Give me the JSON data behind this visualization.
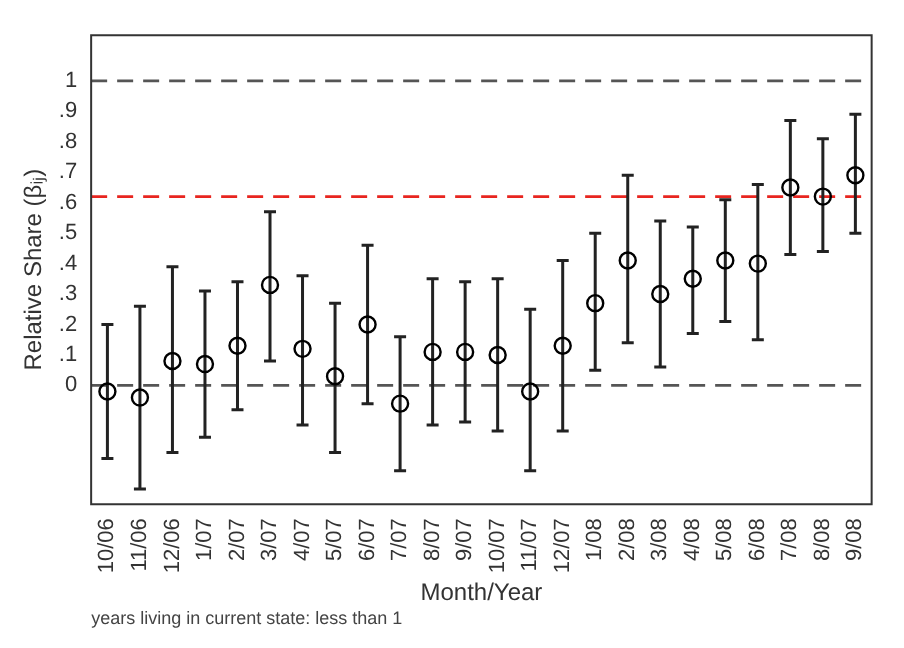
{
  "chart_data": {
    "type": "scatter",
    "xlabel": "Month/Year",
    "ylabel": "Relative Share (βᵢⱼ)",
    "categories": [
      "10/06",
      "11/06",
      "12/06",
      "1/07",
      "2/07",
      "3/07",
      "4/07",
      "5/07",
      "6/07",
      "7/07",
      "8/07",
      "9/07",
      "10/07",
      "11/07",
      "12/07",
      "1/08",
      "2/08",
      "3/08",
      "4/08",
      "5/08",
      "6/08",
      "7/08",
      "8/08",
      "9/08"
    ],
    "series": [
      {
        "color": "#000000",
        "values": [
          -0.02,
          -0.04,
          0.08,
          0.07,
          0.13,
          0.33,
          0.12,
          0.03,
          0.2,
          -0.06,
          0.11,
          0.11,
          0.1,
          -0.02,
          0.13,
          0.27,
          0.41,
          0.3,
          0.35,
          0.41,
          0.4,
          0.65,
          0.62,
          0.69
        ],
        "errors": [
          [
            -0.24,
            0.2
          ],
          [
            -0.34,
            0.26
          ],
          [
            -0.22,
            0.39
          ],
          [
            -0.17,
            0.31
          ],
          [
            -0.08,
            0.34
          ],
          [
            0.08,
            0.57
          ],
          [
            -0.13,
            0.36
          ],
          [
            -0.22,
            0.27
          ],
          [
            -0.06,
            0.46
          ],
          [
            -0.28,
            0.16
          ],
          [
            -0.13,
            0.35
          ],
          [
            -0.12,
            0.34
          ],
          [
            -0.15,
            0.35
          ],
          [
            -0.28,
            0.25
          ],
          [
            -0.15,
            0.41
          ],
          [
            0.05,
            0.5
          ],
          [
            0.14,
            0.69
          ],
          [
            0.06,
            0.54
          ],
          [
            0.17,
            0.52
          ],
          [
            0.21,
            0.61
          ],
          [
            0.15,
            0.66
          ],
          [
            0.43,
            0.87
          ],
          [
            0.44,
            0.81
          ],
          [
            0.5,
            0.89
          ]
        ]
      }
    ],
    "ylim": [
      -0.39,
      1.15
    ],
    "yticks": [
      0,
      {
        "value": 0.1,
        "label": ".1"
      },
      {
        "value": 0.2,
        "label": ".2"
      },
      {
        "value": 0.3,
        "label": ".3"
      },
      {
        "value": 0.4,
        "label": ".4"
      },
      {
        "value": 0.5,
        "label": ".5"
      },
      {
        "value": 0.6,
        "label": ".6"
      },
      {
        "value": 0.7,
        "label": ".7"
      },
      {
        "value": 0.8,
        "label": ".8"
      },
      {
        "value": 0.9,
        "label": ".9"
      },
      1
    ],
    "ref_lines": [
      {
        "axis": "y",
        "value": 0,
        "color": "#555555",
        "line_style": "dashed"
      },
      {
        "axis": "y",
        "value": 1,
        "color": "#555555",
        "line_style": "dashed"
      },
      {
        "axis": "y",
        "value": 0.62,
        "color": "#e8251f",
        "line_style": "dashed"
      }
    ],
    "marker": "circle",
    "grid": false,
    "legend": false,
    "annotations": [
      "years living in current state: less than 1"
    ]
  }
}
